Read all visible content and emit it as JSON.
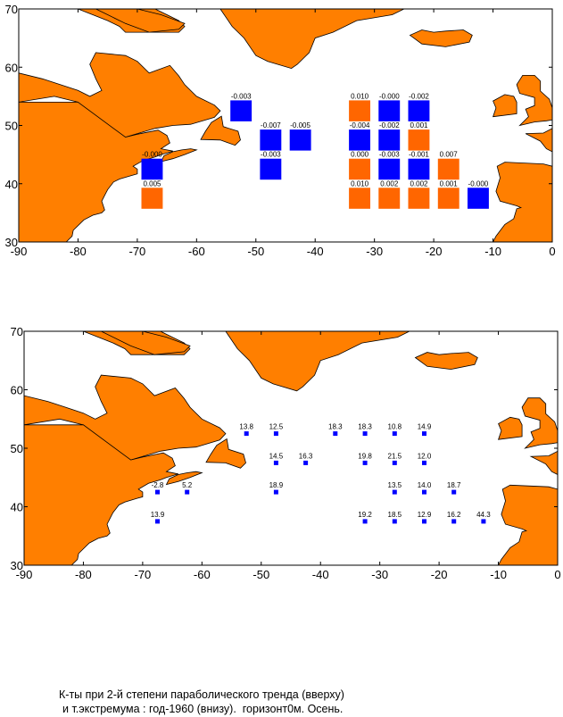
{
  "colors": {
    "land": "#FF7F00",
    "sea": "#FFFFFF",
    "positive": "#FF6600",
    "negative": "#0000FF",
    "frame": "#000000"
  },
  "caption": {
    "line1": "К-ты при 2-й степени параболического тренда (вверху)",
    "line2": "и т.экстремума : год-1960 (внизу).  горизонт0м. Осень."
  },
  "maps": [
    {
      "name": "top-map",
      "xticks": [
        "-90",
        "-80",
        "-70",
        "-60",
        "-50",
        "-40",
        "-30",
        "-20",
        "-10",
        "0"
      ],
      "yticks": [
        "70",
        "60",
        "50",
        "40",
        "30"
      ],
      "xlim": [
        -90,
        0
      ],
      "ylim": [
        30,
        70
      ],
      "cells": [
        {
          "lon": -52.5,
          "lat": 52.5,
          "label": "-0.003",
          "sign": "neg"
        },
        {
          "lon": -47.5,
          "lat": 47.5,
          "label": "-0.007",
          "sign": "neg"
        },
        {
          "lon": -42.5,
          "lat": 47.5,
          "label": "-0.005",
          "sign": "neg"
        },
        {
          "lon": -47.5,
          "lat": 42.5,
          "label": "-0.003",
          "sign": "neg"
        },
        {
          "lon": -67.5,
          "lat": 42.5,
          "label": "-0.000",
          "sign": "neg"
        },
        {
          "lon": -67.5,
          "lat": 37.5,
          "label": "0.005",
          "sign": "pos"
        },
        {
          "lon": -32.5,
          "lat": 52.5,
          "label": "0.010",
          "sign": "pos"
        },
        {
          "lon": -27.5,
          "lat": 52.5,
          "label": "-0.000",
          "sign": "neg"
        },
        {
          "lon": -22.5,
          "lat": 52.5,
          "label": "-0.002",
          "sign": "neg"
        },
        {
          "lon": -32.5,
          "lat": 47.5,
          "label": "-0.004",
          "sign": "neg"
        },
        {
          "lon": -27.5,
          "lat": 47.5,
          "label": "-0.002",
          "sign": "neg"
        },
        {
          "lon": -22.5,
          "lat": 47.5,
          "label": "0.001",
          "sign": "pos"
        },
        {
          "lon": -32.5,
          "lat": 42.5,
          "label": "0.000",
          "sign": "pos"
        },
        {
          "lon": -27.5,
          "lat": 42.5,
          "label": "-0.003",
          "sign": "neg"
        },
        {
          "lon": -22.5,
          "lat": 42.5,
          "label": "-0.001",
          "sign": "neg"
        },
        {
          "lon": -17.5,
          "lat": 42.5,
          "label": "0.007",
          "sign": "pos"
        },
        {
          "lon": -32.5,
          "lat": 37.5,
          "label": "0.010",
          "sign": "pos"
        },
        {
          "lon": -27.5,
          "lat": 37.5,
          "label": "0.002",
          "sign": "pos"
        },
        {
          "lon": -22.5,
          "lat": 37.5,
          "label": "0.002",
          "sign": "pos"
        },
        {
          "lon": -17.5,
          "lat": 37.5,
          "label": "0.001",
          "sign": "pos"
        },
        {
          "lon": -12.5,
          "lat": 37.5,
          "label": "-0.000",
          "sign": "neg"
        }
      ]
    },
    {
      "name": "bottom-map",
      "xticks": [
        "-90",
        "-80",
        "-70",
        "-60",
        "-50",
        "-40",
        "-30",
        "-20",
        "-10",
        "0"
      ],
      "yticks": [
        "70",
        "60",
        "50",
        "40",
        "30"
      ],
      "xlim": [
        -90,
        0
      ],
      "ylim": [
        30,
        70
      ],
      "points": [
        {
          "lon": -52.5,
          "lat": 52.5,
          "label": "13.8"
        },
        {
          "lon": -47.5,
          "lat": 52.5,
          "label": "12.5"
        },
        {
          "lon": -37.5,
          "lat": 52.5,
          "label": "18.3"
        },
        {
          "lon": -32.5,
          "lat": 52.5,
          "label": "18.3"
        },
        {
          "lon": -27.5,
          "lat": 52.5,
          "label": "10.8"
        },
        {
          "lon": -22.5,
          "lat": 52.5,
          "label": "14.9"
        },
        {
          "lon": -47.5,
          "lat": 47.5,
          "label": "14.5"
        },
        {
          "lon": -42.5,
          "lat": 47.5,
          "label": "16.3"
        },
        {
          "lon": -32.5,
          "lat": 47.5,
          "label": "19.8"
        },
        {
          "lon": -27.5,
          "lat": 47.5,
          "label": "21.5"
        },
        {
          "lon": -22.5,
          "lat": 47.5,
          "label": "12.0"
        },
        {
          "lon": -67.5,
          "lat": 42.5,
          "label": "-2.8"
        },
        {
          "lon": -62.5,
          "lat": 42.5,
          "label": "5.2"
        },
        {
          "lon": -47.5,
          "lat": 42.5,
          "label": "18.9"
        },
        {
          "lon": -27.5,
          "lat": 42.5,
          "label": "13.5"
        },
        {
          "lon": -22.5,
          "lat": 42.5,
          "label": "14.0"
        },
        {
          "lon": -17.5,
          "lat": 42.5,
          "label": "18.7"
        },
        {
          "lon": -67.5,
          "lat": 37.5,
          "label": "13.9"
        },
        {
          "lon": -32.5,
          "lat": 37.5,
          "label": "19.2"
        },
        {
          "lon": -27.5,
          "lat": 37.5,
          "label": "18.5"
        },
        {
          "lon": -22.5,
          "lat": 37.5,
          "label": "12.9"
        },
        {
          "lon": -17.5,
          "lat": 37.5,
          "label": "16.2"
        },
        {
          "lon": -12.5,
          "lat": 37.5,
          "label": "44.3"
        }
      ]
    }
  ]
}
